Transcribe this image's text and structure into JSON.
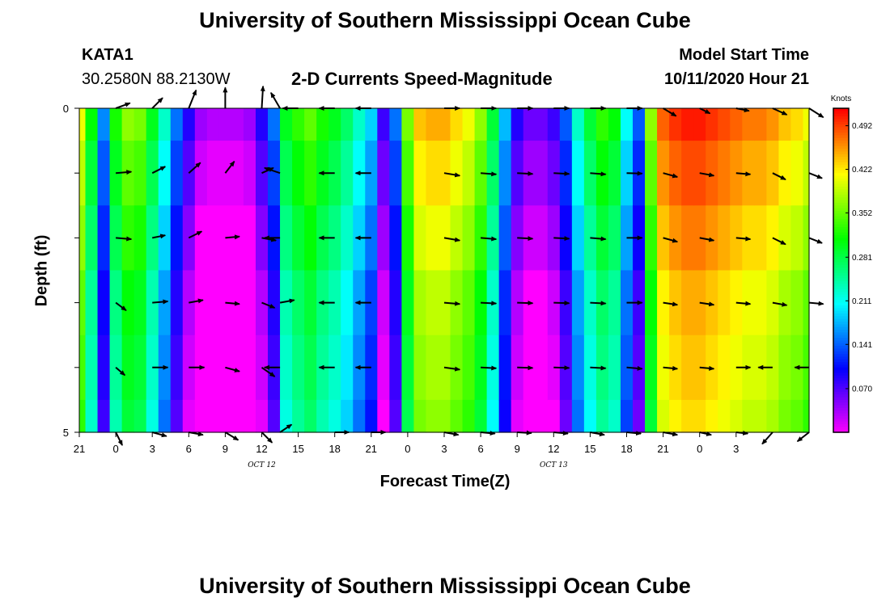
{
  "header": {
    "title": "University of Southern Mississippi Ocean Cube",
    "footer_title": "University of Southern Mississippi Ocean Cube",
    "station": "KATA1",
    "coords": "30.2580N 88.2130W",
    "model_label": "Model Start Time",
    "model_time": "10/11/2020 Hour 21"
  },
  "chart_data": {
    "type": "heatmap",
    "title": "2-D Currents Speed-Magnitude",
    "xlabel": "Forecast Time(Z)",
    "ylabel": "Depth (ft)",
    "x_start_hour": 21,
    "x_end_hour": 81,
    "x_tick_labels": [
      "21",
      "0",
      "3",
      "6",
      "9",
      "12",
      "15",
      "18",
      "21",
      "0",
      "3",
      "6",
      "9",
      "12",
      "15",
      "18",
      "21",
      "0",
      "3"
    ],
    "date_labels": [
      {
        "text": "OCT 12",
        "hour": 36
      },
      {
        "text": "OCT 13",
        "hour": 60
      }
    ],
    "ylim": [
      0,
      5
    ],
    "y_tick_labels": [
      {
        "depth": 0,
        "label": "0"
      },
      {
        "depth": 1,
        "label": ""
      },
      {
        "depth": 2,
        "label": ""
      },
      {
        "depth": 3,
        "label": ""
      },
      {
        "depth": 4,
        "label": ""
      },
      {
        "depth": 5,
        "label": "5"
      }
    ],
    "colorbar": {
      "unit": "Knots",
      "min": 0.0,
      "max": 0.52,
      "ticks": [
        "0.070",
        "0.141",
        "0.211",
        "0.281",
        "0.352",
        "0.422",
        "0.492"
      ]
    },
    "speed_profile_hours": [
      21,
      22,
      23,
      24,
      25,
      26,
      27,
      28,
      29,
      30,
      31,
      32,
      33,
      34,
      35,
      36,
      37,
      38,
      39,
      40,
      41,
      42,
      43,
      44,
      45,
      46,
      47,
      48,
      49,
      50,
      51,
      52,
      53,
      54,
      55,
      56,
      57,
      58,
      59,
      60,
      61,
      62,
      63,
      64,
      65,
      66,
      67,
      68,
      69,
      70,
      71,
      72,
      73,
      74,
      75,
      76,
      77,
      78,
      79,
      80,
      81
    ],
    "speed_profile_knots": [
      0.4,
      0.3,
      0.15,
      0.31,
      0.36,
      0.35,
      0.29,
      0.22,
      0.14,
      0.08,
      0.03,
      0.02,
      0.02,
      0.02,
      0.03,
      0.08,
      0.14,
      0.29,
      0.32,
      0.34,
      0.31,
      0.29,
      0.26,
      0.22,
      0.18,
      0.07,
      0.14,
      0.35,
      0.43,
      0.44,
      0.44,
      0.42,
      0.4,
      0.36,
      0.28,
      0.17,
      0.08,
      0.05,
      0.05,
      0.07,
      0.13,
      0.22,
      0.28,
      0.32,
      0.3,
      0.2,
      0.13,
      0.36,
      0.47,
      0.49,
      0.5,
      0.5,
      0.49,
      0.48,
      0.47,
      0.46,
      0.46,
      0.45,
      0.43,
      0.42,
      0.4
    ],
    "depth_layers": [
      {
        "depth": 0.25,
        "speed_offset": 0.01
      },
      {
        "depth": 1.0,
        "speed_offset": -0.01
      },
      {
        "depth": 2.0,
        "speed_offset": -0.03
      },
      {
        "depth": 3.0,
        "speed_offset": -0.05
      },
      {
        "depth": 4.0,
        "speed_offset": -0.06
      },
      {
        "depth": 4.75,
        "speed_offset": -0.07
      }
    ],
    "vector_rows": [
      {
        "depth": 0,
        "points": [
          {
            "hour": 24,
            "u": 0.55,
            "v": -0.2
          },
          {
            "hour": 27,
            "u": 0.4,
            "v": -0.4
          },
          {
            "hour": 30,
            "u": 0.28,
            "v": -0.7
          },
          {
            "hour": 33,
            "u": 0.0,
            "v": -0.8
          },
          {
            "hour": 36,
            "u": 0.05,
            "v": -0.85
          },
          {
            "hour": 37.5,
            "u": -0.35,
            "v": -0.6
          },
          {
            "hour": 39,
            "u": -0.6,
            "v": 0.0
          },
          {
            "hour": 42,
            "u": -0.6,
            "v": 0.0
          },
          {
            "hour": 45,
            "u": -0.6,
            "v": 0.0
          },
          {
            "hour": 51,
            "u": 0.6,
            "v": 0.0
          },
          {
            "hour": 54,
            "u": 0.6,
            "v": 0.0
          },
          {
            "hour": 57,
            "u": 0.6,
            "v": 0.0
          },
          {
            "hour": 60,
            "u": 0.6,
            "v": 0.0
          },
          {
            "hour": 63,
            "u": 0.6,
            "v": 0.0
          },
          {
            "hour": 66,
            "u": 0.6,
            "v": 0.0
          },
          {
            "hour": 69,
            "u": 0.5,
            "v": 0.3
          },
          {
            "hour": 72,
            "u": 0.4,
            "v": 0.2
          },
          {
            "hour": 75,
            "u": 0.5,
            "v": 0.1
          },
          {
            "hour": 78,
            "u": 0.55,
            "v": 0.25
          },
          {
            "hour": 81,
            "u": 0.55,
            "v": 0.35
          }
        ]
      },
      {
        "depth": 1,
        "points": [
          {
            "hour": 24,
            "u": 0.6,
            "v": -0.05
          },
          {
            "hour": 27,
            "u": 0.5,
            "v": -0.25
          },
          {
            "hour": 30,
            "u": 0.45,
            "v": -0.4
          },
          {
            "hour": 33,
            "u": 0.35,
            "v": -0.45
          },
          {
            "hour": 36,
            "u": 0.45,
            "v": -0.2
          },
          {
            "hour": 37.5,
            "u": -0.6,
            "v": -0.2
          },
          {
            "hour": 42,
            "u": -0.6,
            "v": 0.0
          },
          {
            "hour": 45,
            "u": -0.6,
            "v": 0.0
          },
          {
            "hour": 51,
            "u": 0.6,
            "v": 0.1
          },
          {
            "hour": 54,
            "u": 0.6,
            "v": 0.05
          },
          {
            "hour": 57,
            "u": 0.6,
            "v": 0.03
          },
          {
            "hour": 60,
            "u": 0.6,
            "v": 0.03
          },
          {
            "hour": 63,
            "u": 0.6,
            "v": 0.05
          },
          {
            "hour": 66,
            "u": 0.6,
            "v": 0.02
          },
          {
            "hour": 69,
            "u": 0.55,
            "v": 0.15
          },
          {
            "hour": 72,
            "u": 0.55,
            "v": 0.1
          },
          {
            "hour": 75,
            "u": 0.55,
            "v": 0.05
          },
          {
            "hour": 78,
            "u": 0.5,
            "v": 0.25
          },
          {
            "hour": 81,
            "u": 0.5,
            "v": 0.2
          }
        ]
      },
      {
        "depth": 2,
        "points": [
          {
            "hour": 24,
            "u": 0.6,
            "v": 0.05
          },
          {
            "hour": 27,
            "u": 0.5,
            "v": -0.1
          },
          {
            "hour": 30,
            "u": 0.5,
            "v": -0.25
          },
          {
            "hour": 33,
            "u": 0.55,
            "v": -0.05
          },
          {
            "hour": 36,
            "u": 0.55,
            "v": 0.1
          },
          {
            "hour": 37.5,
            "u": -0.6,
            "v": 0.0
          },
          {
            "hour": 42,
            "u": -0.6,
            "v": 0.0
          },
          {
            "hour": 45,
            "u": -0.6,
            "v": 0.0
          },
          {
            "hour": 51,
            "u": 0.6,
            "v": 0.1
          },
          {
            "hour": 54,
            "u": 0.6,
            "v": 0.05
          },
          {
            "hour": 57,
            "u": 0.6,
            "v": 0.03
          },
          {
            "hour": 60,
            "u": 0.6,
            "v": 0.03
          },
          {
            "hour": 63,
            "u": 0.6,
            "v": 0.05
          },
          {
            "hour": 66,
            "u": 0.6,
            "v": 0.0
          },
          {
            "hour": 69,
            "u": 0.55,
            "v": 0.15
          },
          {
            "hour": 72,
            "u": 0.55,
            "v": 0.1
          },
          {
            "hour": 75,
            "u": 0.55,
            "v": 0.05
          },
          {
            "hour": 78,
            "u": 0.5,
            "v": 0.25
          },
          {
            "hour": 81,
            "u": 0.5,
            "v": 0.2
          }
        ]
      },
      {
        "depth": 3,
        "points": [
          {
            "hour": 24,
            "u": 0.4,
            "v": 0.3
          },
          {
            "hour": 27,
            "u": 0.6,
            "v": -0.05
          },
          {
            "hour": 30,
            "u": 0.55,
            "v": -0.1
          },
          {
            "hour": 33,
            "u": 0.55,
            "v": 0.05
          },
          {
            "hour": 36,
            "u": 0.5,
            "v": 0.2
          },
          {
            "hour": 37.5,
            "u": 0.55,
            "v": -0.1
          },
          {
            "hour": 42,
            "u": -0.6,
            "v": 0.0
          },
          {
            "hour": 45,
            "u": -0.6,
            "v": 0.0
          },
          {
            "hour": 51,
            "u": 0.6,
            "v": 0.05
          },
          {
            "hour": 54,
            "u": 0.6,
            "v": 0.03
          },
          {
            "hour": 57,
            "u": 0.6,
            "v": 0.02
          },
          {
            "hour": 60,
            "u": 0.6,
            "v": 0.02
          },
          {
            "hour": 63,
            "u": 0.6,
            "v": 0.03
          },
          {
            "hour": 66,
            "u": 0.6,
            "v": 0.0
          },
          {
            "hour": 69,
            "u": 0.55,
            "v": 0.08
          },
          {
            "hour": 72,
            "u": 0.55,
            "v": 0.08
          },
          {
            "hour": 75,
            "u": 0.55,
            "v": 0.05
          },
          {
            "hour": 78,
            "u": 0.55,
            "v": 0.1
          },
          {
            "hour": 81,
            "u": 0.55,
            "v": 0.05
          }
        ]
      },
      {
        "depth": 4,
        "points": [
          {
            "hour": 24,
            "u": 0.35,
            "v": 0.3
          },
          {
            "hour": 27,
            "u": 0.6,
            "v": 0.0
          },
          {
            "hour": 30,
            "u": 0.6,
            "v": 0.0
          },
          {
            "hour": 33,
            "u": 0.55,
            "v": 0.15
          },
          {
            "hour": 36,
            "u": 0.5,
            "v": 0.35
          },
          {
            "hour": 37.5,
            "u": -0.6,
            "v": 0.0
          },
          {
            "hour": 42,
            "u": -0.6,
            "v": 0.0
          },
          {
            "hour": 45,
            "u": -0.6,
            "v": 0.0
          },
          {
            "hour": 51,
            "u": 0.6,
            "v": 0.08
          },
          {
            "hour": 54,
            "u": 0.6,
            "v": 0.03
          },
          {
            "hour": 57,
            "u": 0.6,
            "v": 0.02
          },
          {
            "hour": 60,
            "u": 0.6,
            "v": 0.02
          },
          {
            "hour": 63,
            "u": 0.6,
            "v": 0.03
          },
          {
            "hour": 66,
            "u": 0.6,
            "v": 0.05
          },
          {
            "hour": 69,
            "u": 0.55,
            "v": 0.05
          },
          {
            "hour": 72,
            "u": 0.55,
            "v": 0.05
          },
          {
            "hour": 75,
            "u": 0.55,
            "v": 0.0
          },
          {
            "hour": 78,
            "u": -0.55,
            "v": 0.0
          },
          {
            "hour": 81,
            "u": -0.55,
            "v": 0.0
          }
        ]
      },
      {
        "depth": 5,
        "points": [
          {
            "hour": 24,
            "u": 0.25,
            "v": 0.5
          },
          {
            "hour": 27,
            "u": 0.55,
            "v": 0.15
          },
          {
            "hour": 30,
            "u": 0.55,
            "v": 0.1
          },
          {
            "hour": 33,
            "u": 0.5,
            "v": 0.3
          },
          {
            "hour": 36,
            "u": 0.4,
            "v": 0.4
          },
          {
            "hour": 37.5,
            "u": 0.45,
            "v": -0.3
          },
          {
            "hour": 42,
            "u": 0.55,
            "v": 0.0
          },
          {
            "hour": 45,
            "u": 0.55,
            "v": 0.0
          },
          {
            "hour": 51,
            "u": 0.55,
            "v": 0.1
          },
          {
            "hour": 54,
            "u": 0.55,
            "v": 0.05
          },
          {
            "hour": 57,
            "u": 0.55,
            "v": 0.03
          },
          {
            "hour": 60,
            "u": 0.55,
            "v": 0.05
          },
          {
            "hour": 63,
            "u": 0.55,
            "v": 0.1
          },
          {
            "hour": 66,
            "u": 0.55,
            "v": 0.05
          },
          {
            "hour": 69,
            "u": 0.55,
            "v": 0.1
          },
          {
            "hour": 72,
            "u": 0.45,
            "v": 0.1
          },
          {
            "hour": 75,
            "u": 0.45,
            "v": 0.05
          },
          {
            "hour": 78,
            "u": -0.4,
            "v": 0.45
          },
          {
            "hour": 81,
            "u": -0.45,
            "v": 0.35
          }
        ]
      }
    ]
  }
}
